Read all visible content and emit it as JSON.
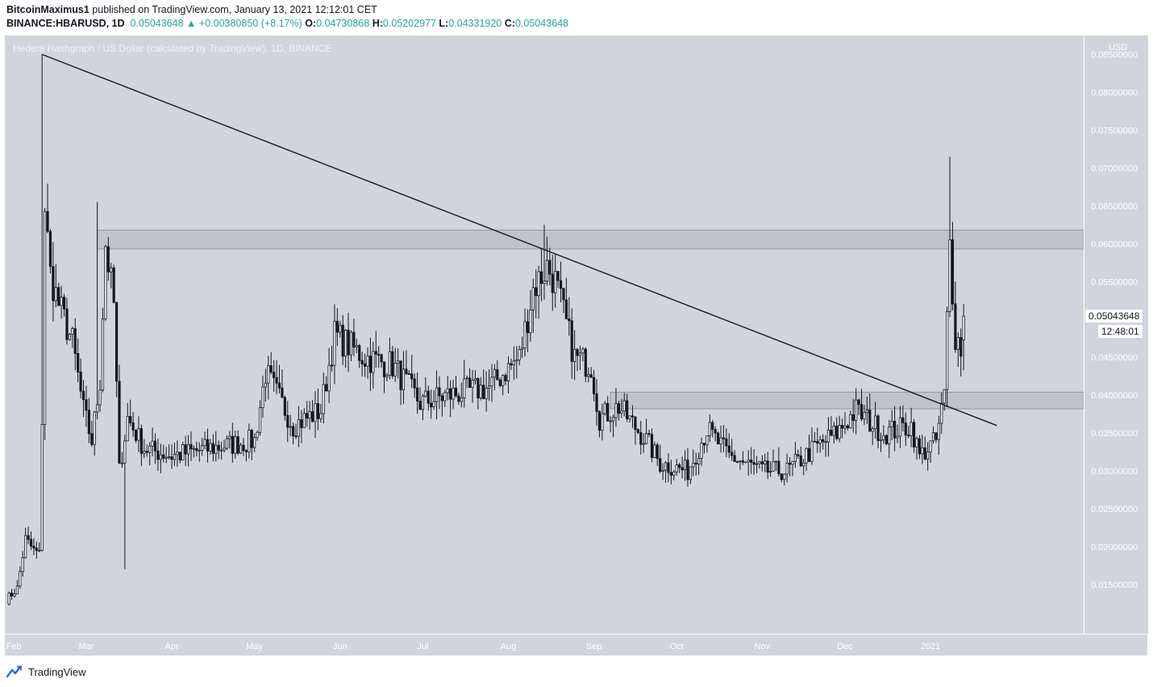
{
  "header": {
    "author": "BitcoinMaximus1",
    "published": "published on TradingView.com, January 13, 2021 12:12:01 CET",
    "symbol": "BINANCE:HBARUSD, 1D",
    "last": "0.05043648",
    "change_arrow": "▲",
    "change": "+0.00380850 (+8.17%)",
    "o_label": "O:",
    "o_value": "0.04730868",
    "h_label": "H:",
    "h_value": "0.05202977",
    "l_label": "L:",
    "l_value": "0.04331920",
    "c_label": "C:",
    "c_value": "0.05043648"
  },
  "chart_title": "Hedera Hashgraph / US Dollar (calculated by TradingView), 1D, BINANCE",
  "price_axis": {
    "currency": "USD",
    "current_price": "0.05043648",
    "countdown": "12:48:01"
  },
  "footer": {
    "brand": "TradingView"
  },
  "colors": {
    "background": "#d1d4dc",
    "candle": "#131722",
    "candle_hollow": "#ffffff",
    "zone": "#b2b5be",
    "positive": "#26a69a"
  },
  "chart_data": {
    "type": "candlestick",
    "title": "Hedera Hashgraph / US Dollar (calculated by TradingView), 1D, BINANCE",
    "y_scale": "linear",
    "ylim": [
      0.0085,
      0.0875
    ],
    "y_ticks": [
      "0.01500000",
      "0.02000000",
      "0.02500000",
      "0.03000000",
      "0.03500000",
      "0.04000000",
      "0.04500000",
      "0.05000000",
      "0.05500000",
      "0.06000000",
      "0.06500000",
      "0.07000000",
      "0.07500000",
      "0.08000000",
      "0.08500000"
    ],
    "x_ticks": [
      "Feb",
      "Mar",
      "Apr",
      "May",
      "Jun",
      "Jul",
      "Aug",
      "Sep",
      "Oct",
      "Nov",
      "Dec",
      "2021"
    ],
    "x_start": "2020-02-01",
    "x_end": "2021-01-25",
    "anchors": [
      [
        "2020-02-01",
        0.013
      ],
      [
        "2020-02-05",
        0.0145
      ],
      [
        "2020-02-08",
        0.021
      ],
      [
        "2020-02-11",
        0.0195
      ],
      [
        "2020-02-13",
        0.019
      ],
      [
        "2020-02-14",
        0.037
      ],
      [
        "2020-02-15",
        0.065
      ],
      [
        "2020-02-17",
        0.056
      ],
      [
        "2020-02-20",
        0.052
      ],
      [
        "2020-02-25",
        0.047
      ],
      [
        "2020-02-29",
        0.038
      ],
      [
        "2020-03-03",
        0.034
      ],
      [
        "2020-03-06",
        0.042
      ],
      [
        "2020-03-08",
        0.06
      ],
      [
        "2020-03-11",
        0.052
      ],
      [
        "2020-03-13",
        0.03
      ],
      [
        "2020-03-16",
        0.037
      ],
      [
        "2020-03-22",
        0.033
      ],
      [
        "2020-04-01",
        0.032
      ],
      [
        "2020-04-15",
        0.033
      ],
      [
        "2020-05-01",
        0.034
      ],
      [
        "2020-05-05",
        0.043
      ],
      [
        "2020-05-15",
        0.036
      ],
      [
        "2020-05-25",
        0.038
      ],
      [
        "2020-05-30",
        0.048
      ],
      [
        "2020-06-10",
        0.045
      ],
      [
        "2020-06-20",
        0.044
      ],
      [
        "2020-06-30",
        0.039
      ],
      [
        "2020-07-10",
        0.04
      ],
      [
        "2020-07-25",
        0.041
      ],
      [
        "2020-08-05",
        0.045
      ],
      [
        "2020-08-10",
        0.054
      ],
      [
        "2020-08-15",
        0.057
      ],
      [
        "2020-08-18",
        0.055
      ],
      [
        "2020-08-25",
        0.045
      ],
      [
        "2020-08-31",
        0.044
      ],
      [
        "2020-09-03",
        0.037
      ],
      [
        "2020-09-10",
        0.0385
      ],
      [
        "2020-09-20",
        0.034
      ],
      [
        "2020-09-25",
        0.031
      ],
      [
        "2020-10-05",
        0.03
      ],
      [
        "2020-10-12",
        0.0355
      ],
      [
        "2020-10-20",
        0.032
      ],
      [
        "2020-11-01",
        0.03
      ],
      [
        "2020-11-10",
        0.03
      ],
      [
        "2020-11-20",
        0.033
      ],
      [
        "2020-11-28",
        0.035
      ],
      [
        "2020-12-05",
        0.038
      ],
      [
        "2020-12-15",
        0.035
      ],
      [
        "2020-12-25",
        0.036
      ],
      [
        "2020-12-28",
        0.032
      ],
      [
        "2021-01-03",
        0.034
      ],
      [
        "2021-01-06",
        0.04
      ],
      [
        "2021-01-08",
        0.06
      ],
      [
        "2021-01-10",
        0.048
      ],
      [
        "2021-01-12",
        0.0463
      ],
      [
        "2021-01-13",
        0.0504
      ]
    ],
    "peaks": [
      [
        "2020-02-14",
        0.085
      ],
      [
        "2020-03-05",
        0.0655
      ],
      [
        "2020-08-14",
        0.0625
      ],
      [
        "2021-01-08",
        0.0715
      ],
      [
        "2020-03-15",
        0.017
      ]
    ],
    "last_candle": {
      "date": "2021-01-13",
      "open": 0.04730868,
      "high": 0.05202977,
      "low": 0.0433192,
      "close": 0.05043648
    },
    "trendline": {
      "start": [
        "2020-02-14",
        0.085
      ],
      "end": [
        "2021-01-25",
        0.036
      ]
    },
    "resistance_zone": {
      "from": "2020-03-05",
      "low": 0.0593,
      "high": 0.0618
    },
    "support_zone": {
      "from": "2020-09-07",
      "low": 0.0382,
      "high": 0.0404
    }
  }
}
